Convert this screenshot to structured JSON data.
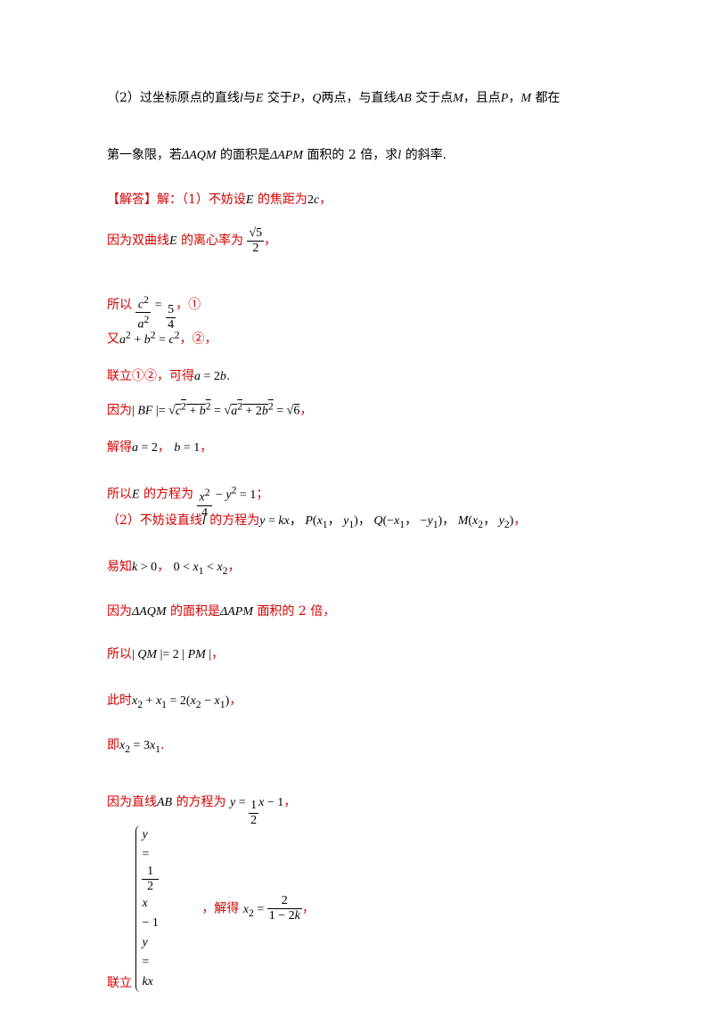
{
  "lines": {
    "q2_a": "（2）过坐标原点的直线",
    "q2_b": "与",
    "q2_c": "交于",
    "q2_d": "，",
    "q2_e": "两点，与直线",
    "q2_f": "交于点",
    "q2_g": "，且点",
    "q2_h": "，",
    "q2_i": "都在",
    "q2_line2_a": "第一象限，若",
    "q2_line2_b": "的面积是",
    "q2_line2_c": "面积的 2 倍，求",
    "q2_line2_d": "的斜率.",
    "ans_head": "【解答】",
    "ans_1": "解：（1）不妨设",
    "ans_1b": "的焦距为",
    "ans_1c": "，",
    "ans_2": "因为双曲线",
    "ans_2b": "的离心率为",
    "ans_2c": "，",
    "ans_3": "所以",
    "ans_3b": "，①",
    "ans_4": "又",
    "ans_4b": "，②，",
    "ans_5": "联立①②，可得",
    "ans_5b": ".",
    "ans_6": "因为",
    "ans_6b": "，",
    "ans_7": "解得",
    "ans_7b": "，",
    "ans_7c": "，",
    "ans_8": "所以",
    "ans_8b": "的方程为",
    "ans_8c": "；",
    "ans_9": "（2）不妨设直线",
    "ans_9b": "的方程为",
    "ans_9c": "，",
    "ans_10": "易知",
    "ans_10b": "，",
    "ans_10c": "，",
    "ans_11": "因为",
    "ans_11b": "的面积是",
    "ans_11c": "面积的 2 倍，",
    "ans_12": "所以",
    "ans_12b": "，",
    "ans_13": "此时",
    "ans_13b": "，",
    "ans_14": "即",
    "ans_14b": ".",
    "ans_15": "因为直线",
    "ans_15b": "的方程为",
    "ans_15c": "，",
    "ans_16": "联立",
    "ans_16b": "，解得",
    "ans_16c": "，"
  }
}
